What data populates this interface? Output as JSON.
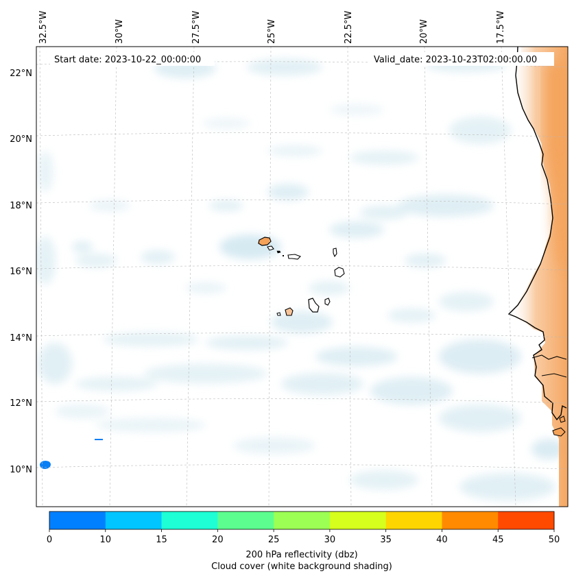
{
  "map": {
    "start_date": "Start date: 2023-10-22_00:00:00",
    "valid_date": "Valid_date: 2023-10-23T02:00:00.00",
    "lon_labels": [
      "32.5°W",
      "30°W",
      "27.5°W",
      "25°W",
      "22.5°W",
      "20°W",
      "17.5°W"
    ],
    "lat_labels": [
      "22°N",
      "20°N",
      "18°N",
      "16°N",
      "14°N",
      "12°N",
      "10°N"
    ],
    "land_color": "#f4a259",
    "cloud_color": "#cde6ef",
    "reflectivity_color": "#0a7ff5"
  },
  "colorbar": {
    "ticks": [
      "0",
      "10",
      "15",
      "20",
      "25",
      "30",
      "35",
      "40",
      "45",
      "50"
    ],
    "colors": [
      "#0080ff",
      "#00c5ff",
      "#1effd6",
      "#5cff8f",
      "#9cff54",
      "#d6ff1e",
      "#ffd500",
      "#ff8a00",
      "#ff4a00"
    ],
    "label_line1": "200 hPa reflectivity (dbz)",
    "label_line2": "Cloud cover (white background shading)"
  }
}
